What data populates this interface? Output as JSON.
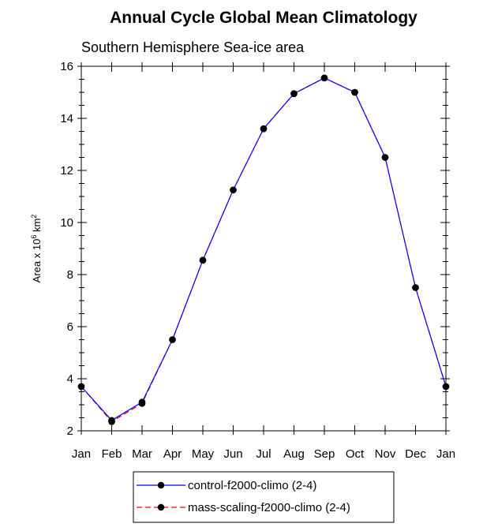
{
  "chart_data": {
    "type": "line",
    "title": "Annual Cycle Global Mean Climatology",
    "subtitle": "Southern Hemisphere Sea-ice area",
    "ylabel_prefix": "Area x 10",
    "ylabel_exp": "6",
    "ylabel_unit": " km",
    "ylabel_unit_exp": "2",
    "xlabel": "",
    "categories": [
      "Jan",
      "Feb",
      "Mar",
      "Apr",
      "May",
      "Jun",
      "Jul",
      "Aug",
      "Sep",
      "Oct",
      "Nov",
      "Dec",
      "Jan"
    ],
    "ylim": [
      2,
      16
    ],
    "yticks": [
      2,
      4,
      6,
      8,
      10,
      12,
      14,
      16
    ],
    "series": [
      {
        "name": "control-f2000-climo (2-4)",
        "color": "#0000ff",
        "dash": "solid",
        "values": [
          3.7,
          2.4,
          3.1,
          5.5,
          8.55,
          11.25,
          13.6,
          14.95,
          15.55,
          15.0,
          12.5,
          7.5,
          3.7
        ]
      },
      {
        "name": "mass-scaling-f2000-climo (2-4)",
        "color": "#ff0000",
        "dash": "dashed",
        "values": [
          3.7,
          2.35,
          3.05,
          5.5,
          8.55,
          11.25,
          13.6,
          14.95,
          15.55,
          15.0,
          12.5,
          7.5,
          3.7
        ]
      }
    ],
    "legend_position": "bottom-center",
    "marker_color": "#000000"
  }
}
